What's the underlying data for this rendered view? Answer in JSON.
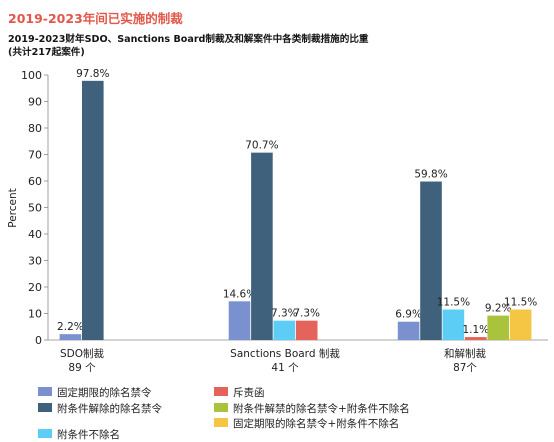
{
  "title": "2019-2023年间已实施的制裁",
  "subtitle": "2019-2023财年SDO、Sanctions Board制裁及和解案件中各类制裁措施的比重",
  "subtitle_note": "(共计217起案件)",
  "chart_data": {
    "type": "bar",
    "ylabel": "Percent",
    "ylim": [
      0,
      100
    ],
    "yticks": [
      0,
      10,
      20,
      30,
      40,
      50,
      60,
      70,
      80,
      90,
      100
    ],
    "grid": false,
    "legend_position": "bottom",
    "value_suffix": "%",
    "categories": [
      "SDO制裁",
      "Sanctions Board 制裁",
      "和解制裁"
    ],
    "category_counts": [
      "89 个",
      "41 个",
      "87个"
    ],
    "series": [
      {
        "name": "固定期限的除名禁令",
        "color": "#7b90cf",
        "values": [
          2.2,
          14.6,
          6.9
        ]
      },
      {
        "name": "附条件解除的除名禁令",
        "color": "#3f617c",
        "values": [
          97.8,
          70.7,
          59.8
        ]
      },
      {
        "name": "附条件不除名",
        "color": "#5ccdf5",
        "values": [
          null,
          7.3,
          11.5
        ]
      },
      {
        "name": "斥责函",
        "color": "#e4635b",
        "values": [
          null,
          7.3,
          1.1
        ]
      },
      {
        "name": "附条件解禁的除名禁令+附条件不除名",
        "color": "#a9c43c",
        "values": [
          null,
          null,
          9.2
        ]
      },
      {
        "name": "固定期限的除名禁令+附条件不除名",
        "color": "#f4c644",
        "values": [
          null,
          null,
          11.5
        ]
      }
    ]
  }
}
